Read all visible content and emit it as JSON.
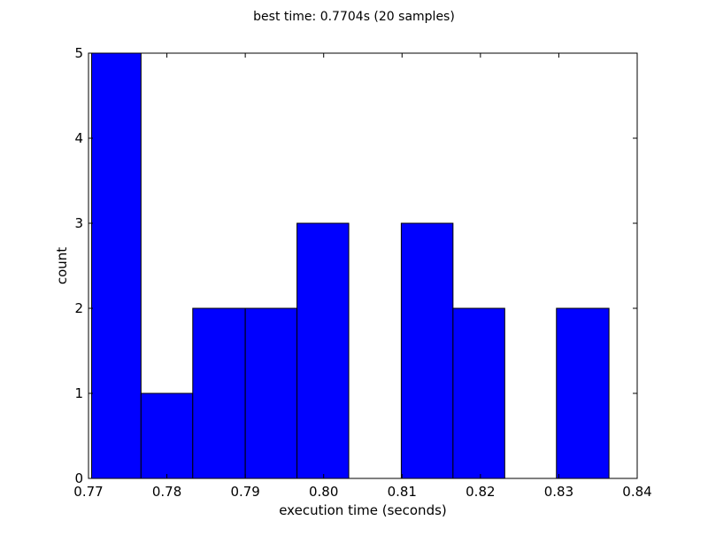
{
  "chart_data": {
    "type": "bar",
    "title": "best time: 0.7704s (20 samples)",
    "xlabel": "execution time (seconds)",
    "ylabel": "count",
    "xlim": [
      0.77,
      0.84
    ],
    "ylim": [
      0,
      5
    ],
    "xticks": [
      "0.77",
      "0.78",
      "0.79",
      "0.80",
      "0.81",
      "0.82",
      "0.83",
      "0.84"
    ],
    "yticks": [
      "0",
      "1",
      "2",
      "3",
      "4",
      "5"
    ],
    "bin_edges": [
      0.7704,
      0.7767,
      0.7833,
      0.79,
      0.7966,
      0.8032,
      0.8099,
      0.8165,
      0.8231,
      0.8297,
      0.8364
    ],
    "values": [
      5,
      1,
      2,
      2,
      3,
      0,
      3,
      2,
      0,
      2
    ],
    "bar_color": "#0000ff",
    "grid": false
  }
}
